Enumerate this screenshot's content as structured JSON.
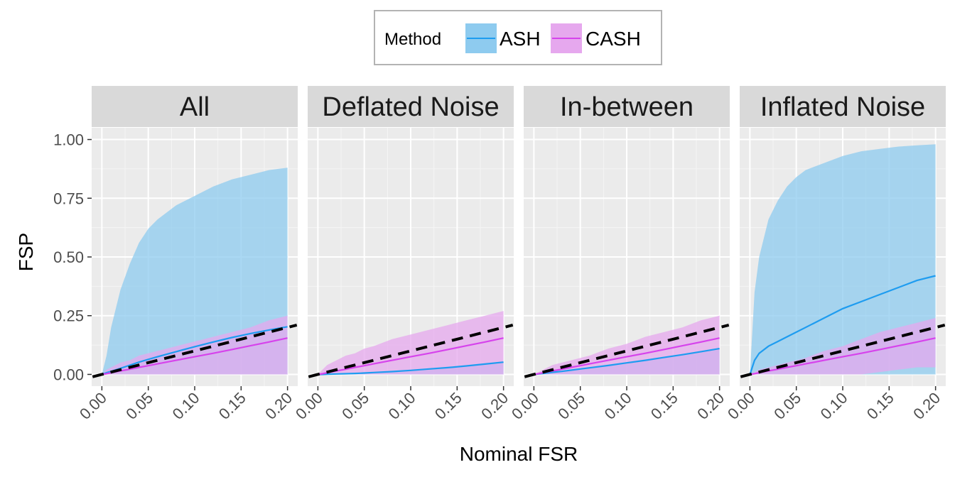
{
  "chart_data": {
    "type": "area",
    "facets": [
      "All",
      "Deflated Noise",
      "In-between",
      "Inflated Noise"
    ],
    "xlabel": "Nominal FSR",
    "ylabel": "FSP",
    "xlim": [
      0,
      0.2
    ],
    "ylim": [
      0,
      1
    ],
    "x_ticks": [
      0,
      0.05,
      0.1,
      0.15,
      0.2
    ],
    "x_tick_labels": [
      "0.00",
      "0.05",
      "0.10",
      "0.15",
      "0.20"
    ],
    "y_ticks": [
      0,
      0.25,
      0.5,
      0.75,
      1.0
    ],
    "y_tick_labels": [
      "0.00",
      "0.25",
      "0.50",
      "0.75",
      "1.00"
    ],
    "grid": true,
    "legend": {
      "title": "Method",
      "position": "top",
      "entries": [
        {
          "label": "ASH",
          "line_color": "#1e9cf0",
          "fill_color": "#8ecbef"
        },
        {
          "label": "CASH",
          "line_color": "#d643ec",
          "fill_color": "#e6a8ee"
        }
      ]
    },
    "reference_line": {
      "style": "dashed",
      "color": "#000000",
      "x": [
        -0.01,
        0.21
      ],
      "y": [
        -0.01,
        0.21
      ]
    },
    "x": [
      0,
      0.005,
      0.01,
      0.02,
      0.03,
      0.04,
      0.05,
      0.06,
      0.08,
      0.1,
      0.12,
      0.14,
      0.16,
      0.18,
      0.2
    ],
    "panels": [
      {
        "facet": "All",
        "series": [
          {
            "name": "ASH",
            "mean": [
              0,
              0.007,
              0.013,
              0.026,
              0.039,
              0.052,
              0.064,
              0.075,
              0.097,
              0.118,
              0.138,
              0.157,
              0.174,
              0.189,
              0.203
            ],
            "lower": [
              0,
              0,
              0,
              0,
              0,
              0,
              0,
              0,
              0,
              0,
              0,
              0,
              0,
              0,
              0
            ],
            "upper": [
              0,
              0.08,
              0.2,
              0.36,
              0.47,
              0.56,
              0.62,
              0.66,
              0.72,
              0.76,
              0.8,
              0.83,
              0.85,
              0.87,
              0.88
            ]
          },
          {
            "name": "CASH",
            "mean": [
              0,
              0.003,
              0.007,
              0.015,
              0.022,
              0.03,
              0.037,
              0.045,
              0.06,
              0.075,
              0.09,
              0.106,
              0.122,
              0.138,
              0.155
            ],
            "lower": [
              0,
              0,
              0,
              0,
              0,
              0,
              0,
              0,
              0,
              0,
              0,
              0,
              0,
              0,
              0
            ],
            "upper": [
              0,
              0.02,
              0.03,
              0.05,
              0.06,
              0.08,
              0.09,
              0.1,
              0.12,
              0.14,
              0.16,
              0.18,
              0.2,
              0.23,
              0.25
            ]
          }
        ]
      },
      {
        "facet": "Deflated Noise",
        "series": [
          {
            "name": "ASH",
            "mean": [
              0,
              0,
              0.001,
              0.002,
              0.003,
              0.004,
              0.006,
              0.008,
              0.012,
              0.017,
              0.023,
              0.029,
              0.036,
              0.044,
              0.052
            ],
            "lower": [
              0,
              0,
              0,
              0,
              0,
              0,
              0,
              0,
              0,
              0,
              0,
              0,
              0,
              0,
              0
            ],
            "upper": [
              0,
              0,
              0.001,
              0.002,
              0.003,
              0.004,
              0.006,
              0.008,
              0.012,
              0.017,
              0.023,
              0.029,
              0.036,
              0.044,
              0.052
            ]
          },
          {
            "name": "CASH",
            "mean": [
              0,
              0.003,
              0.007,
              0.015,
              0.022,
              0.03,
              0.037,
              0.045,
              0.06,
              0.075,
              0.09,
              0.106,
              0.122,
              0.138,
              0.155
            ],
            "lower": [
              0,
              0,
              0,
              0,
              0,
              0,
              0,
              0,
              0,
              0,
              0,
              0,
              0,
              0,
              0
            ],
            "upper": [
              0,
              0.02,
              0.04,
              0.06,
              0.08,
              0.09,
              0.11,
              0.12,
              0.15,
              0.17,
              0.19,
              0.21,
              0.23,
              0.25,
              0.27
            ]
          }
        ]
      },
      {
        "facet": "In-between",
        "series": [
          {
            "name": "ASH",
            "mean": [
              0,
              0.002,
              0.004,
              0.009,
              0.013,
              0.018,
              0.023,
              0.028,
              0.038,
              0.049,
              0.06,
              0.072,
              0.084,
              0.097,
              0.11
            ],
            "lower": [
              0,
              0,
              0,
              0,
              0,
              0,
              0,
              0,
              0,
              0,
              0,
              0,
              0,
              0,
              0
            ],
            "upper": [
              0,
              0.002,
              0.004,
              0.009,
              0.013,
              0.018,
              0.023,
              0.028,
              0.038,
              0.049,
              0.06,
              0.072,
              0.084,
              0.097,
              0.11
            ]
          },
          {
            "name": "CASH",
            "mean": [
              0,
              0.003,
              0.007,
              0.015,
              0.022,
              0.03,
              0.037,
              0.045,
              0.06,
              0.075,
              0.09,
              0.106,
              0.122,
              0.138,
              0.155
            ],
            "lower": [
              0,
              0,
              0,
              0,
              0,
              0,
              0,
              0,
              0,
              0,
              0,
              0,
              0,
              0,
              0
            ],
            "upper": [
              0,
              0.01,
              0.02,
              0.04,
              0.05,
              0.06,
              0.07,
              0.08,
              0.11,
              0.13,
              0.16,
              0.18,
              0.2,
              0.23,
              0.25
            ]
          }
        ]
      },
      {
        "facet": "Inflated Noise",
        "series": [
          {
            "name": "ASH",
            "mean": [
              0,
              0.06,
              0.09,
              0.12,
              0.14,
              0.16,
              0.18,
              0.2,
              0.24,
              0.28,
              0.31,
              0.34,
              0.37,
              0.4,
              0.42
            ],
            "lower": [
              0,
              0,
              0,
              0,
              0,
              0,
              0,
              0,
              0,
              0,
              0,
              0,
              0,
              0,
              0
            ],
            "upper": [
              0,
              0.35,
              0.5,
              0.66,
              0.74,
              0.8,
              0.84,
              0.87,
              0.9,
              0.93,
              0.95,
              0.96,
              0.97,
              0.975,
              0.98
            ]
          },
          {
            "name": "CASH",
            "mean": [
              0,
              0.003,
              0.007,
              0.015,
              0.022,
              0.03,
              0.037,
              0.045,
              0.06,
              0.075,
              0.09,
              0.106,
              0.122,
              0.138,
              0.155
            ],
            "lower": [
              0,
              0,
              0,
              0,
              0,
              0,
              0,
              0,
              0,
              0,
              0,
              0.01,
              0.02,
              0.03,
              0.03
            ],
            "upper": [
              0,
              0.01,
              0.02,
              0.03,
              0.04,
              0.05,
              0.06,
              0.07,
              0.1,
              0.12,
              0.15,
              0.18,
              0.2,
              0.22,
              0.24
            ]
          }
        ]
      }
    ]
  }
}
